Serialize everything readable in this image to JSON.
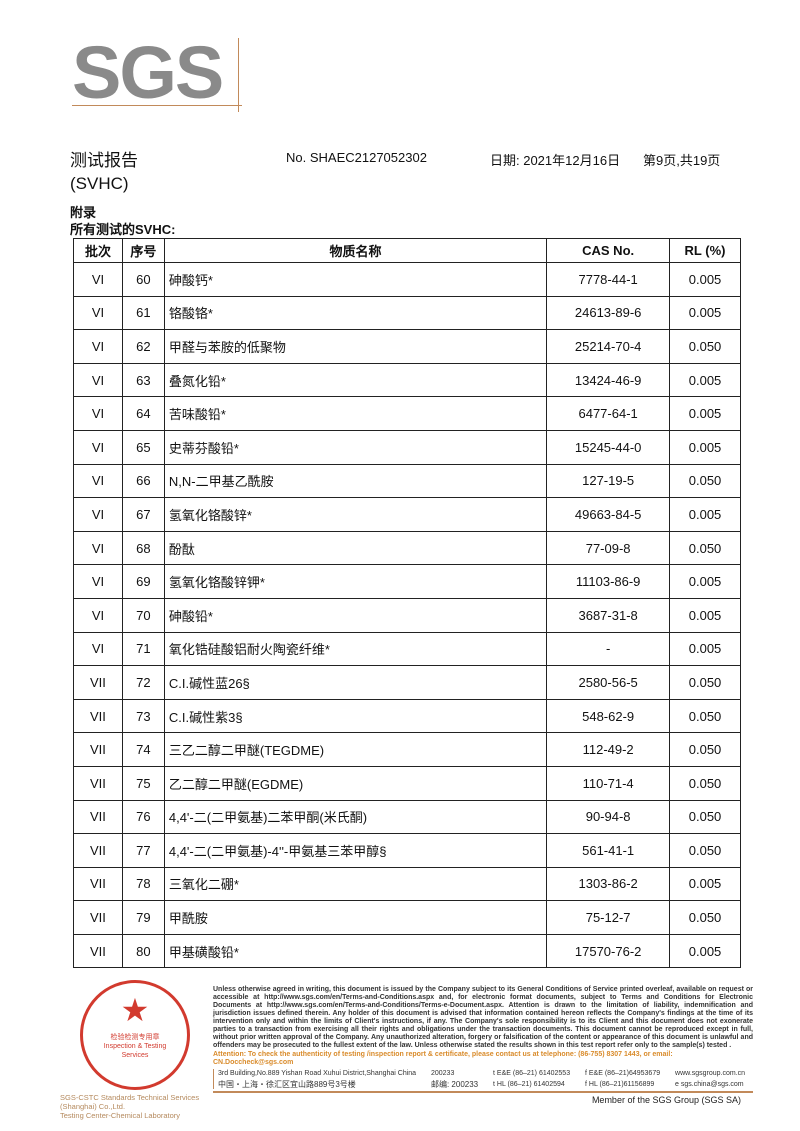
{
  "logo": "SGS",
  "header": {
    "title": "测试报告",
    "report_no": "No. SHAEC2127052302",
    "date": "日期: 2021年12月16日",
    "page": "第9页,共19页",
    "subtitle": "(SVHC)",
    "appendix": "附录",
    "all_tested": "所有测试的SVHC:"
  },
  "table": {
    "headers": [
      "批次",
      "序号",
      "物质名称",
      "CAS No.",
      "RL (%)"
    ],
    "rows": [
      [
        "VI",
        "60",
        "砷酸钙*",
        "7778-44-1",
        "0.005"
      ],
      [
        "VI",
        "61",
        "铬酸铬*",
        "24613-89-6",
        "0.005"
      ],
      [
        "VI",
        "62",
        "甲醛与苯胺的低聚物",
        "25214-70-4",
        "0.050"
      ],
      [
        "VI",
        "63",
        "叠氮化铅*",
        "13424-46-9",
        "0.005"
      ],
      [
        "VI",
        "64",
        "苦味酸铅*",
        "6477-64-1",
        "0.005"
      ],
      [
        "VI",
        "65",
        "史蒂芬酸铅*",
        "15245-44-0",
        "0.005"
      ],
      [
        "VI",
        "66",
        "N,N-二甲基乙酰胺",
        "127-19-5",
        "0.050"
      ],
      [
        "VI",
        "67",
        "氢氧化铬酸锌*",
        "49663-84-5",
        "0.005"
      ],
      [
        "VI",
        "68",
        "酚酞",
        "77-09-8",
        "0.050"
      ],
      [
        "VI",
        "69",
        "氢氧化铬酸锌钾*",
        "11103-86-9",
        "0.005"
      ],
      [
        "VI",
        "70",
        "砷酸铅*",
        "3687-31-8",
        "0.005"
      ],
      [
        "VI",
        "71",
        "氧化锆硅酸铝耐火陶瓷纤维*",
        "-",
        "0.005"
      ],
      [
        "VII",
        "72",
        "C.I.碱性蓝26§",
        "2580-56-5",
        "0.050"
      ],
      [
        "VII",
        "73",
        "C.I.碱性紫3§",
        "548-62-9",
        "0.050"
      ],
      [
        "VII",
        "74",
        "三乙二醇二甲醚(TEGDME)",
        "112-49-2",
        "0.050"
      ],
      [
        "VII",
        "75",
        "乙二醇二甲醚(EGDME)",
        "110-71-4",
        "0.050"
      ],
      [
        "VII",
        "76",
        "4,4'-二(二甲氨基)二苯甲酮(米氏酮)",
        "90-94-8",
        "0.050"
      ],
      [
        "VII",
        "77",
        "4,4'-二(二甲氨基)-4''-甲氨基三苯甲醇§",
        "561-41-1",
        "0.050"
      ],
      [
        "VII",
        "78",
        "三氧化二硼*",
        "1303-86-2",
        "0.005"
      ],
      [
        "VII",
        "79",
        "甲酰胺",
        "75-12-7",
        "0.050"
      ],
      [
        "VII",
        "80",
        "甲基磺酸铅*",
        "17570-76-2",
        "0.005"
      ]
    ]
  },
  "footer": {
    "stamp_text": "检验检测专用章 Inspection & Testing Services",
    "company_line1": "SGS-CSTC Standards Technical Services (Shanghai) Co.,Ltd.",
    "company_line2": "Testing Center-Chemical Laboratory",
    "disclaimer": "Unless otherwise agreed in writing, this document is issued by the Company subject to its General Conditions of Service printed overleaf, available on request or accessible at http://www.sgs.com/en/Terms-and-Conditions.aspx and, for electronic format documents, subject to Terms and Conditions for Electronic Documents at http://www.sgs.com/en/Terms-and-Conditions/Terms-e-Document.aspx. Attention is drawn to the limitation of liability, indemnification and jurisdiction issues defined therein. Any holder of this document is advised that information contained hereon reflects the Company's findings at the time of its intervention only and within the limits of Client's instructions, if any. The Company's sole responsibility is to its Client and this document does not exonerate parties to a transaction from exercising all their rights and obligations under the transaction documents. This document cannot be reproduced except in full, without prior written approval of the Company. Any unauthorized alteration, forgery or falsification of the content or appearance of this document is unlawful and offenders may be prosecuted to the fullest extent of the law. Unless otherwise stated the results shown in this test report refer only to the sample(s) tested .",
    "attention": "Attention: To check the authenticity of testing /inspection report & certificate, please contact us at telephone: (86-755) 8307 1443, or email: CN.Doccheck@sgs.com",
    "addr_en": "3rd Building,No.889 Yishan Road Xuhui District,Shanghai China",
    "zip_en": "200233",
    "addr_cn": "中国・上海・徐汇区宜山路889号3号楼",
    "zip_cn": "邮编: 200233",
    "tel1": "t E&E (86–21) 61402553",
    "fax1": "f E&E (86–21)64953679",
    "tel2": "t HL (86–21) 61402594",
    "fax2": "f HL (86–21)61156899",
    "web": "www.sgsgroup.com.cn",
    "email": "e  sgs.china@sgs.com",
    "member": "Member of the SGS Group (SGS SA)"
  },
  "colors": {
    "logo_gray": "#8a8a8a",
    "accent": "#c28a5a",
    "stamp_red": "#d23a2e",
    "attention_orange": "#d98b2b"
  }
}
